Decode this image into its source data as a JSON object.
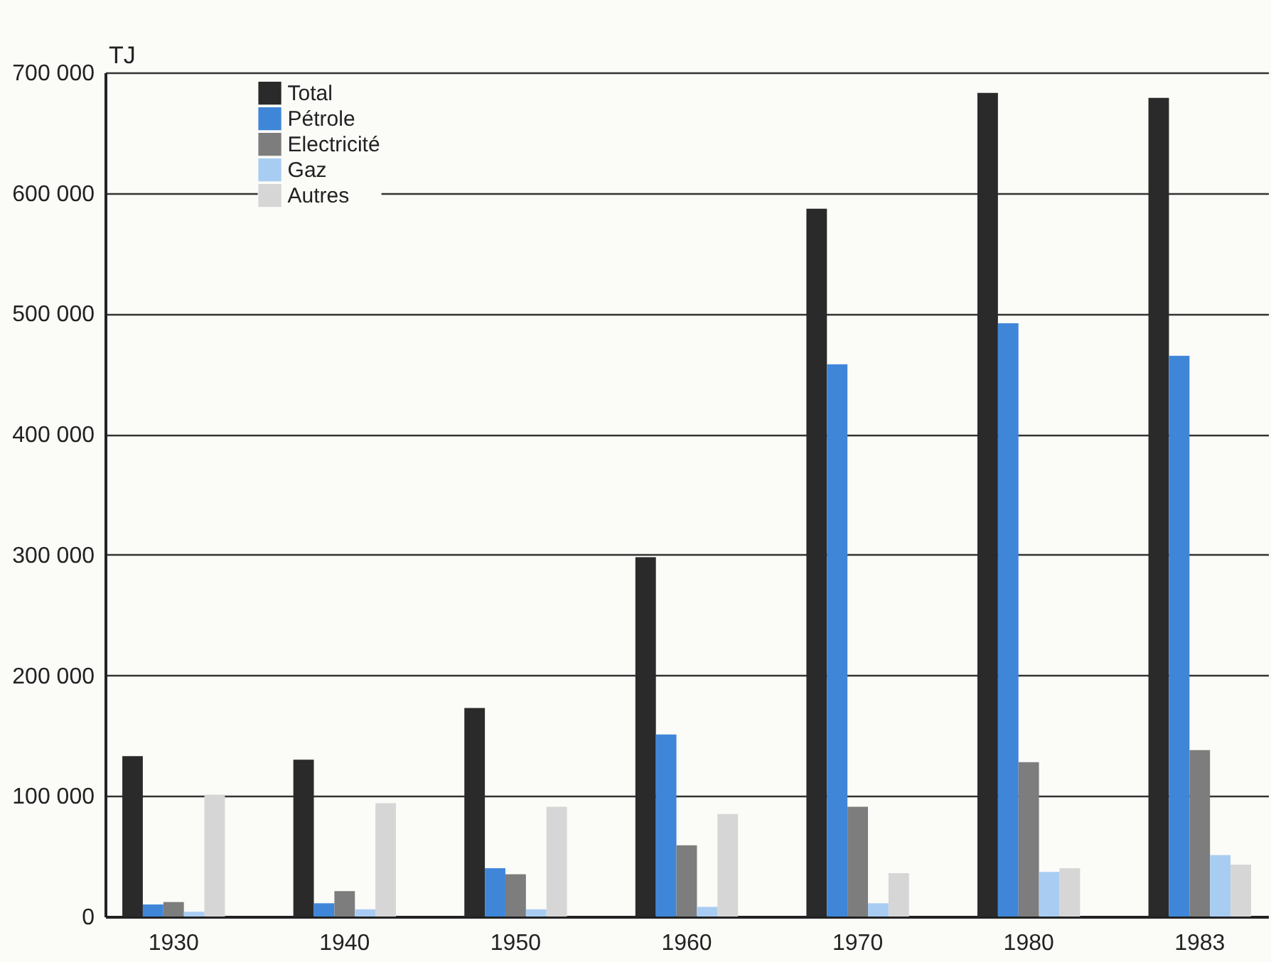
{
  "chart_data": {
    "type": "bar",
    "ylabel": "TJ",
    "categories": [
      "1930",
      "1940",
      "1950",
      "1960",
      "1970",
      "1980",
      "1983"
    ],
    "series": [
      {
        "name": "Total",
        "color": "#2a2a2a",
        "values": [
          133000,
          130000,
          173000,
          298000,
          587000,
          683000,
          679000
        ]
      },
      {
        "name": "Pétrole",
        "color": "#3f86d9",
        "values": [
          10000,
          11000,
          40000,
          151000,
          458000,
          492000,
          465000
        ]
      },
      {
        "name": "Electricité",
        "color": "#7d7d7d",
        "values": [
          12000,
          21000,
          35000,
          59000,
          91000,
          128000,
          138000
        ]
      },
      {
        "name": "Gaz",
        "color": "#a9cdf2",
        "values": [
          4000,
          6000,
          6000,
          8000,
          11000,
          37000,
          51000
        ]
      },
      {
        "name": "Autres",
        "color": "#d6d6d6",
        "values": [
          101000,
          94000,
          91000,
          85000,
          36000,
          40000,
          43000
        ]
      }
    ],
    "ylim": [
      0,
      700000
    ],
    "yticks": [
      {
        "value": 0,
        "label": "0"
      },
      {
        "value": 100000,
        "label": "100 000"
      },
      {
        "value": 200000,
        "label": "200 000"
      },
      {
        "value": 300000,
        "label": "300 000"
      },
      {
        "value": 400000,
        "label": "400 000"
      },
      {
        "value": 500000,
        "label": "500 000"
      },
      {
        "value": 600000,
        "label": "600 000"
      },
      {
        "value": 700000,
        "label": "700 000"
      }
    ],
    "grid": "y",
    "legend": "top left"
  }
}
